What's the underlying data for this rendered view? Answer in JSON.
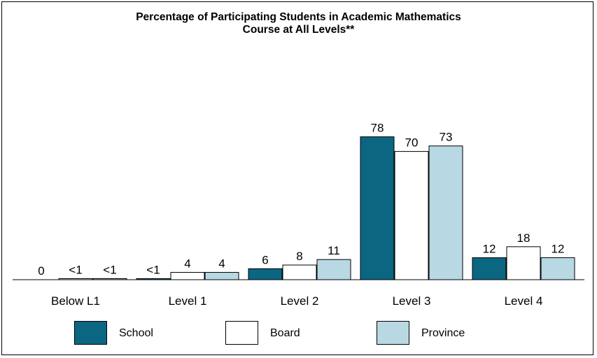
{
  "chart_data": {
    "type": "bar",
    "title_lines": [
      "Percentage of Participating Students in Academic Mathematics",
      "Course at All Levels**"
    ],
    "categories": [
      "Below L1",
      "Level 1",
      "Level 2",
      "Level 3",
      "Level 4"
    ],
    "series": [
      {
        "name": "School",
        "color": "#0b6682",
        "values": [
          0,
          0.5,
          6,
          78,
          12
        ],
        "labels": [
          "0",
          "<1",
          "6",
          "78",
          "12"
        ]
      },
      {
        "name": "Board",
        "color": "#ffffff",
        "values": [
          0.5,
          4,
          8,
          70,
          18
        ],
        "labels": [
          "<1",
          "4",
          "8",
          "70",
          "18"
        ]
      },
      {
        "name": "Province",
        "color": "#b8d8e3",
        "values": [
          0.5,
          4,
          11,
          73,
          12
        ],
        "labels": [
          "<1",
          "4",
          "11",
          "73",
          "12"
        ]
      }
    ],
    "ylim": [
      0,
      100
    ],
    "grid": false,
    "legend_position": "bottom"
  }
}
